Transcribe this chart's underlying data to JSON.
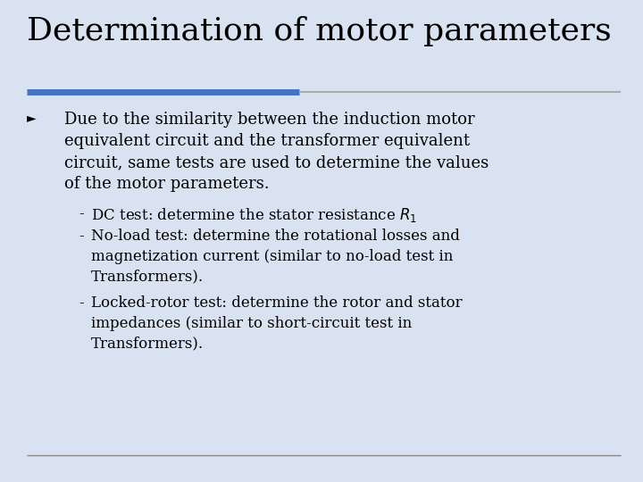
{
  "title": "Determination of motor parameters",
  "title_fontsize": 26,
  "title_font": "DejaVu Serif",
  "slide_bg": "#d9e2f0",
  "title_color": "#000000",
  "bar_color_left": "#4472c4",
  "text_color": "#000000",
  "bullet_symbol": "►",
  "bullet_text_lines": [
    "Due to the similarity between the induction motor",
    "equivalent circuit and the transformer equivalent",
    "circuit, same tests are used to determine the values",
    "of the motor parameters."
  ],
  "sub1_prefix": "DC test: determine the stator resistance ",
  "sub1_math": "$R_1$",
  "sub2_text": "No-load test: determine the rotational losses and\nmagnetization current (similar to no-load test in\nTransformers).",
  "sub3_text": "Locked-rotor test: determine the rotor and stator\nimpedances (similar to short-circuit test in\nTransformers).",
  "body_fontsize": 13,
  "sub_fontsize": 12,
  "footer_line_color": "#888888"
}
